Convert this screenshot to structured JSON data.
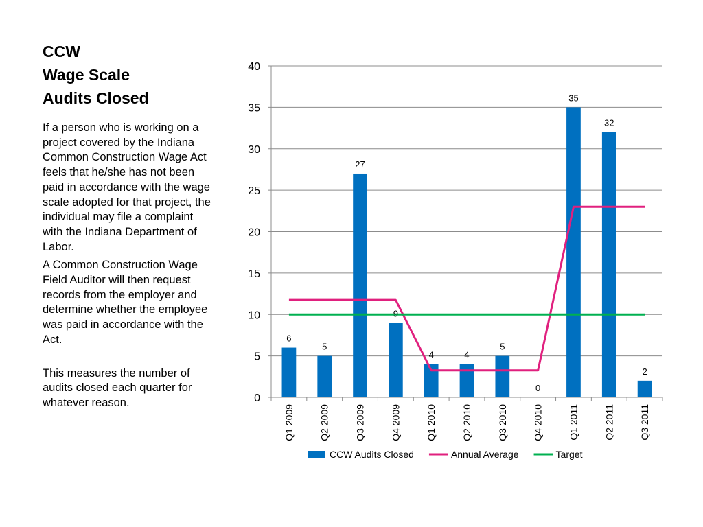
{
  "slide": {
    "title_lines": [
      "CCW",
      "Wage Scale",
      "Audits Closed"
    ],
    "paragraphs": [
      "If a person who is working on a project covered by the Indiana Common Construction Wage Act feels that he/she has not been paid in accordance with the wage scale adopted for that project, the individual may file a complaint with the Indiana Department of Labor.",
      "A Common Construction Wage Field Auditor will then request records from the employer and determine whether the employee was paid in accordance with the Act.",
      "This measures the number of audits closed each quarter for whatever reason."
    ]
  },
  "chart_data": {
    "type": "bar",
    "categories": [
      "Q1 2009",
      "Q2 2009",
      "Q3 2009",
      "Q4 2009",
      "Q1 2010",
      "Q2 2010",
      "Q3 2010",
      "Q4 2010",
      "Q1 2011",
      "Q2 2011",
      "Q3 2011"
    ],
    "series": [
      {
        "name": "CCW Audits Closed",
        "type": "bar",
        "color": "#0070C0",
        "values": [
          6,
          5,
          27,
          9,
          4,
          4,
          5,
          0,
          35,
          32,
          2
        ]
      },
      {
        "name": "Annual Average",
        "type": "line",
        "color": "#E0207E",
        "values": [
          11.75,
          11.75,
          11.75,
          11.75,
          3.25,
          3.25,
          3.25,
          3.25,
          23,
          23,
          23
        ]
      },
      {
        "name": "Target",
        "type": "line",
        "color": "#00B050",
        "values": [
          10,
          10,
          10,
          10,
          10,
          10,
          10,
          10,
          10,
          10,
          10
        ]
      }
    ],
    "ylim": [
      0,
      40
    ],
    "yticks": [
      0,
      5,
      10,
      15,
      20,
      25,
      30,
      35,
      40
    ],
    "grid": true,
    "legend": "bottom",
    "data_labels": true,
    "title": "",
    "xlabel": "",
    "ylabel": ""
  }
}
